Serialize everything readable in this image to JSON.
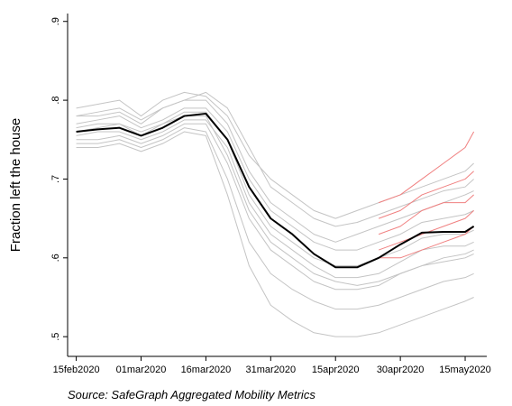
{
  "chart_data": {
    "type": "line",
    "ylabel": "Fraction left the house",
    "source": "Source: SafeGraph Aggregated Mobility Metrics",
    "x": [
      "2020-02-15",
      "2020-02-20",
      "2020-02-25",
      "2020-03-01",
      "2020-03-06",
      "2020-03-11",
      "2020-03-16",
      "2020-03-21",
      "2020-03-26",
      "2020-03-31",
      "2020-04-05",
      "2020-04-10",
      "2020-04-15",
      "2020-04-20",
      "2020-04-25",
      "2020-04-30",
      "2020-05-05",
      "2020-05-10",
      "2020-05-15",
      "2020-05-17"
    ],
    "xlim": [
      "2020-02-13",
      "2020-05-20"
    ],
    "xticks": [
      {
        "value": "2020-02-15",
        "label": "15feb2020"
      },
      {
        "value": "2020-03-01",
        "label": "01mar2020"
      },
      {
        "value": "2020-03-16",
        "label": "16mar2020"
      },
      {
        "value": "2020-03-31",
        "label": "31mar2020"
      },
      {
        "value": "2020-04-15",
        "label": "15apr2020"
      },
      {
        "value": "2020-04-30",
        "label": "30apr2020"
      },
      {
        "value": "2020-05-15",
        "label": "15may2020"
      }
    ],
    "ylim": [
      0.475,
      0.91
    ],
    "yticks": [
      {
        "value": 0.5,
        "label": ".5"
      },
      {
        "value": 0.6,
        "label": ".6"
      },
      {
        "value": 0.7,
        "label": ".7"
      },
      {
        "value": 0.8,
        "label": ".8"
      },
      {
        "value": 0.9,
        "label": ".9"
      }
    ],
    "series": [
      {
        "color": "#c4c4c4",
        "values": [
          0.79,
          0.795,
          0.8,
          0.78,
          0.8,
          0.81,
          0.805,
          0.78,
          0.73,
          0.7,
          0.68,
          0.66,
          0.65,
          0.66,
          0.67,
          0.68,
          0.69,
          0.7,
          0.71,
          0.72
        ]
      },
      {
        "color": "#c4c4c4",
        "values": [
          0.78,
          0.78,
          0.785,
          0.77,
          0.79,
          0.8,
          0.8,
          0.77,
          0.71,
          0.67,
          0.65,
          0.63,
          0.62,
          0.63,
          0.64,
          0.65,
          0.66,
          0.67,
          0.68,
          0.685
        ]
      },
      {
        "color": "#c4c4c4",
        "values": [
          0.77,
          0.775,
          0.78,
          0.765,
          0.775,
          0.79,
          0.79,
          0.76,
          0.7,
          0.66,
          0.64,
          0.62,
          0.61,
          0.61,
          0.62,
          0.63,
          0.645,
          0.65,
          0.655,
          0.66
        ]
      },
      {
        "color": "#c4c4c4",
        "values": [
          0.765,
          0.77,
          0.77,
          0.76,
          0.77,
          0.785,
          0.785,
          0.75,
          0.68,
          0.64,
          0.62,
          0.6,
          0.59,
          0.59,
          0.6,
          0.61,
          0.625,
          0.63,
          0.63,
          0.635
        ]
      },
      {
        "color": "#c4c4c4",
        "values": [
          0.755,
          0.76,
          0.76,
          0.75,
          0.76,
          0.775,
          0.775,
          0.74,
          0.67,
          0.63,
          0.61,
          0.59,
          0.575,
          0.575,
          0.58,
          0.595,
          0.61,
          0.615,
          0.615,
          0.62
        ]
      },
      {
        "color": "#c4c4c4",
        "values": [
          0.75,
          0.75,
          0.755,
          0.745,
          0.755,
          0.77,
          0.77,
          0.72,
          0.65,
          0.61,
          0.59,
          0.57,
          0.56,
          0.56,
          0.565,
          0.58,
          0.59,
          0.595,
          0.6,
          0.605
        ]
      },
      {
        "color": "#c4c4c4",
        "values": [
          0.745,
          0.745,
          0.75,
          0.74,
          0.75,
          0.765,
          0.76,
          0.7,
          0.62,
          0.58,
          0.56,
          0.545,
          0.535,
          0.535,
          0.54,
          0.55,
          0.56,
          0.57,
          0.575,
          0.58
        ]
      },
      {
        "color": "#c4c4c4",
        "values": [
          0.74,
          0.74,
          0.745,
          0.735,
          0.745,
          0.76,
          0.755,
          0.68,
          0.59,
          0.54,
          0.52,
          0.505,
          0.5,
          0.5,
          0.505,
          0.515,
          0.525,
          0.535,
          0.545,
          0.55
        ]
      },
      {
        "color": "#c4c4c4",
        "values": [
          0.78,
          0.785,
          0.79,
          0.775,
          0.79,
          0.8,
          0.81,
          0.79,
          0.74,
          0.69,
          0.67,
          0.65,
          0.64,
          0.645,
          0.655,
          0.665,
          0.675,
          0.685,
          0.69,
          0.7
        ]
      },
      {
        "color": "#c4c4c4",
        "values": [
          0.76,
          0.765,
          0.77,
          0.755,
          0.77,
          0.78,
          0.78,
          0.73,
          0.66,
          0.62,
          0.6,
          0.58,
          0.57,
          0.565,
          0.57,
          0.58,
          0.59,
          0.6,
          0.605,
          0.61
        ]
      },
      {
        "color": "#f08080",
        "values": [
          null,
          null,
          null,
          null,
          null,
          null,
          null,
          null,
          null,
          null,
          null,
          null,
          null,
          null,
          0.67,
          0.68,
          0.7,
          0.72,
          0.74,
          0.76
        ]
      },
      {
        "color": "#f08080",
        "values": [
          null,
          null,
          null,
          null,
          null,
          null,
          null,
          null,
          null,
          null,
          null,
          null,
          null,
          null,
          0.65,
          0.66,
          0.68,
          0.69,
          0.7,
          0.71
        ]
      },
      {
        "color": "#f08080",
        "values": [
          null,
          null,
          null,
          null,
          null,
          null,
          null,
          null,
          null,
          null,
          null,
          null,
          null,
          null,
          0.63,
          0.64,
          0.66,
          0.67,
          0.67,
          0.68
        ]
      },
      {
        "color": "#f08080",
        "values": [
          null,
          null,
          null,
          null,
          null,
          null,
          null,
          null,
          null,
          null,
          null,
          null,
          null,
          null,
          0.61,
          0.62,
          0.63,
          0.64,
          0.65,
          0.66
        ]
      },
      {
        "color": "#f08080",
        "values": [
          null,
          null,
          null,
          null,
          null,
          null,
          null,
          null,
          null,
          null,
          null,
          null,
          null,
          null,
          0.6,
          0.6,
          0.61,
          0.62,
          0.63,
          0.64
        ]
      },
      {
        "color": "#000000",
        "values": [
          0.76,
          0.763,
          0.765,
          0.755,
          0.765,
          0.78,
          0.783,
          0.75,
          0.69,
          0.65,
          0.63,
          0.605,
          0.588,
          0.588,
          0.6,
          0.617,
          0.632,
          0.633,
          0.633,
          0.64
        ]
      }
    ]
  }
}
